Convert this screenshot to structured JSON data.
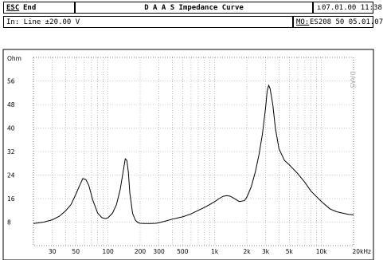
{
  "header": {
    "esc_key": "ESC",
    "esc_action": "End",
    "title": "D A A S  Impedance Curve",
    "info_icon": "ı",
    "datetime": "07.01.00 11:38"
  },
  "subheader": {
    "input_line": "In: Line  ±20.00 V",
    "mo_label": "MO:",
    "mo_value": "ES208 50 05.01.07"
  },
  "watermark": "DAAS",
  "chart_data": {
    "type": "line",
    "title": "",
    "xlabel": "",
    "ylabel": "Ohm",
    "x_unit": "Hz",
    "xscale": "log",
    "xlim": [
      20,
      20000
    ],
    "ylim": [
      0,
      64
    ],
    "grid": true,
    "x_ticks": [
      {
        "v": 30,
        "t": "30"
      },
      {
        "v": 50,
        "t": "50"
      },
      {
        "v": 100,
        "t": "100"
      },
      {
        "v": 200,
        "t": "200"
      },
      {
        "v": 300,
        "t": "300"
      },
      {
        "v": 500,
        "t": "500"
      },
      {
        "v": 1000,
        "t": "1k"
      },
      {
        "v": 2000,
        "t": "2k"
      },
      {
        "v": 3000,
        "t": "3k"
      },
      {
        "v": 5000,
        "t": "5k"
      },
      {
        "v": 10000,
        "t": "10k"
      },
      {
        "v": 20000,
        "t": "20kHz"
      }
    ],
    "y_ticks": [
      8,
      16,
      24,
      32,
      40,
      48,
      56
    ],
    "series": [
      {
        "x": [
          20,
          25,
          30,
          35,
          40,
          45,
          50,
          55,
          58,
          62,
          66,
          72,
          80,
          88,
          95,
          100,
          110,
          120,
          130,
          140,
          145,
          150,
          155,
          160,
          170,
          180,
          190,
          200,
          220,
          250,
          280,
          300,
          350,
          400,
          450,
          500,
          600,
          700,
          800,
          900,
          1000,
          1100,
          1200,
          1300,
          1400,
          1500,
          1700,
          1900,
          2000,
          2200,
          2400,
          2600,
          2800,
          3000,
          3100,
          3200,
          3300,
          3500,
          3700,
          4000,
          4500,
          5000,
          6000,
          7000,
          8000,
          10000,
          12000,
          14000,
          16000,
          18000,
          20000
        ],
        "y": [
          7.5,
          8,
          8.8,
          10,
          11.8,
          14,
          17.5,
          21,
          22.8,
          22.5,
          20.5,
          15.5,
          11,
          9.5,
          9.2,
          9.5,
          11,
          14,
          19,
          26,
          29.5,
          29,
          25,
          18,
          11,
          8.7,
          7.9,
          7.6,
          7.5,
          7.5,
          7.6,
          7.8,
          8.4,
          9,
          9.4,
          9.8,
          10.8,
          12,
          13,
          14,
          15,
          16,
          16.8,
          17,
          16.8,
          16.2,
          15,
          15.3,
          16.5,
          20,
          25,
          31,
          38,
          47,
          52.5,
          54.5,
          53.5,
          48,
          40,
          33,
          29,
          27.5,
          24.5,
          21.5,
          18.5,
          15,
          12.5,
          11.5,
          11,
          10.6,
          10.5
        ]
      }
    ]
  }
}
